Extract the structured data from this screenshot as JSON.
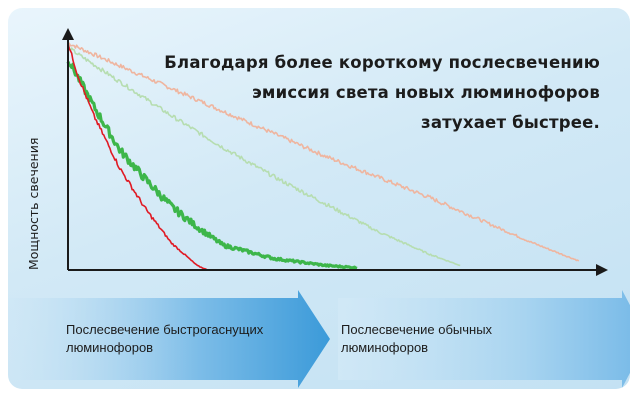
{
  "headline": [
    "Благодаря более короткому послесвечению",
    "эмиссия света новых люминофоров",
    "затухает быстрее."
  ],
  "chart_data": {
    "type": "line",
    "title": "Благодаря более короткому послесвечению эмиссия света новых люминофоров затухает быстрее.",
    "xlabel": "",
    "ylabel": "Мощность свечения",
    "xlim": [
      0,
      1
    ],
    "ylim": [
      0,
      1
    ],
    "grid": false,
    "legend": "none",
    "series": [
      {
        "color": "#e01a24",
        "x": [
          0,
          0.02,
          0.05,
          0.1,
          0.15,
          0.2,
          0.25,
          0.27
        ],
        "y": [
          1,
          0.85,
          0.68,
          0.45,
          0.27,
          0.12,
          0.02,
          0
        ]
      },
      {
        "color": "#3db64a",
        "x": [
          0,
          0.05,
          0.1,
          0.15,
          0.2,
          0.25,
          0.3,
          0.4,
          0.5,
          0.56
        ],
        "y": [
          0.93,
          0.72,
          0.53,
          0.4,
          0.28,
          0.19,
          0.11,
          0.05,
          0.02,
          0.01
        ]
      },
      {
        "color": "#b6ddb0",
        "x": [
          0,
          0.1,
          0.2,
          0.3,
          0.4,
          0.5,
          0.6,
          0.7,
          0.76
        ],
        "y": [
          0.98,
          0.83,
          0.68,
          0.54,
          0.41,
          0.29,
          0.17,
          0.07,
          0.02
        ]
      },
      {
        "color": "#efb59f",
        "x": [
          0,
          0.1,
          0.2,
          0.3,
          0.4,
          0.5,
          0.6,
          0.7,
          0.8,
          0.9,
          0.99
        ],
        "y": [
          1,
          0.9,
          0.8,
          0.7,
          0.6,
          0.5,
          0.41,
          0.32,
          0.22,
          0.12,
          0.04
        ]
      }
    ]
  },
  "arrows": {
    "fast_label": "Послесвечение быстрогаснущих\nлюминофоров",
    "normal_label": "Послесвечение обычных\nлюминофоров"
  },
  "colors": {
    "fast_arrow": "#4ea6dd",
    "normal_arrow": "#7fc0ea"
  }
}
